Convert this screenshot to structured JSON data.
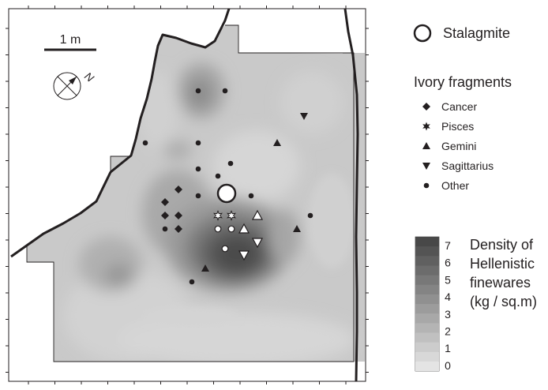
{
  "map": {
    "scale_bar_label": "1 m",
    "north_label": "N"
  },
  "legend": {
    "stalagmite_label": "Stalagmite",
    "fragments_title": "Ivory fragments",
    "symbols": [
      {
        "key": "cancer",
        "label": "Cancer",
        "shape": "diamond"
      },
      {
        "key": "pisces",
        "label": "Pisces",
        "shape": "star"
      },
      {
        "key": "gemini",
        "label": "Gemini",
        "shape": "triangle-up"
      },
      {
        "key": "sagittarius",
        "label": "Sagittarius",
        "shape": "triangle-down"
      },
      {
        "key": "other",
        "label": "Other",
        "shape": "dot"
      }
    ],
    "density_title_lines": [
      "Density of",
      "Hellenistic",
      "finewares",
      "(kg / sq.m)"
    ],
    "density_ticks": [
      "7",
      "6",
      "5",
      "4",
      "3",
      "2",
      "1",
      "0"
    ],
    "density_min": 0,
    "density_max": 7
  },
  "colors": {
    "low_density": "#e4e4e4",
    "high_density": "#4a4a4a",
    "outline": "#231f20",
    "background": "#ffffff"
  }
}
